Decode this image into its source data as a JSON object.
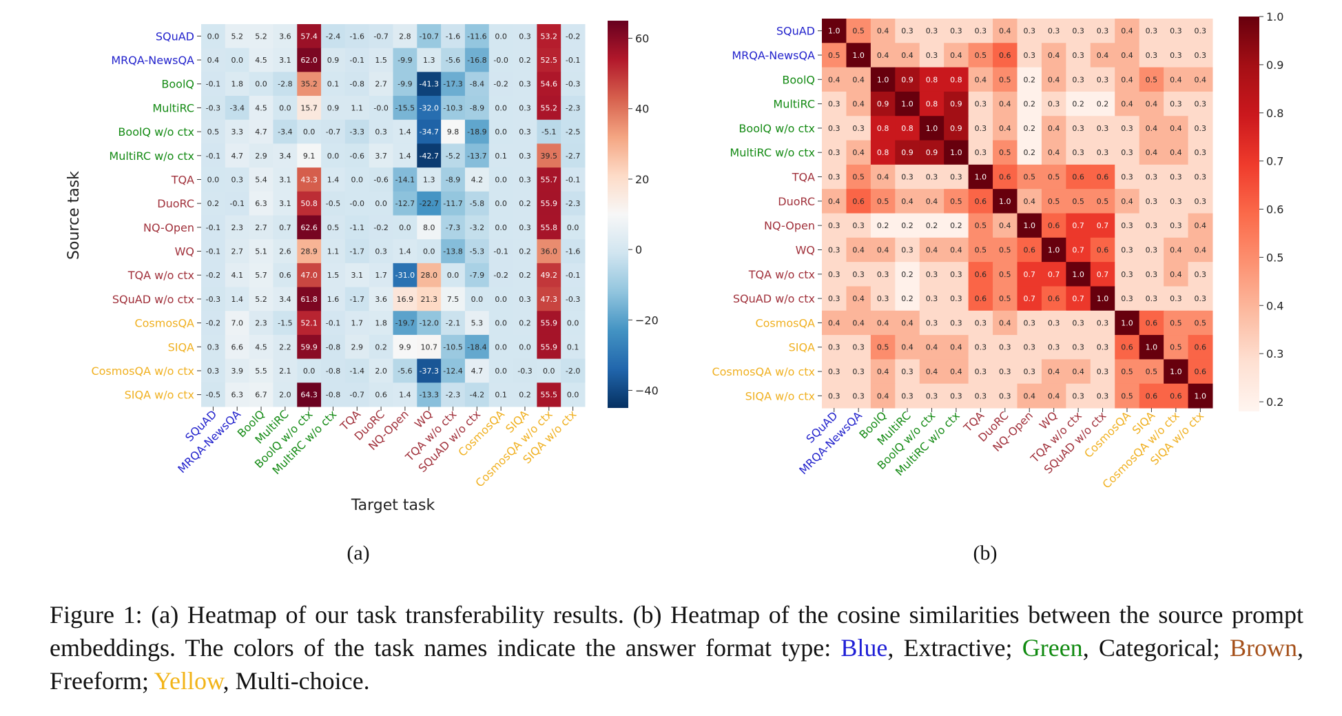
{
  "colors": {
    "Extractive": "#2222cc",
    "Categorical": "#138a13",
    "Freeform": "#a0303a",
    "Multi-choice": "#f0b020"
  },
  "caption": {
    "p1": "Figure 1: (a) Heatmap of our task transferability results. (b) Heatmap of the cosine similarities between the source prompt embeddings.  The colors of the task names indicate the answer format type: ",
    "blue": "Blue",
    "p2": ", Extractive; ",
    "green": "Green",
    "p3": ", Categorical; ",
    "brown": "Brown",
    "p4": ", Freeform; ",
    "yellow": "Yellow",
    "p5": ", Multi-choice."
  },
  "chart_data": [
    {
      "type": "heatmap",
      "panel_label": "(a)",
      "title": "",
      "xlabel": "Target task",
      "ylabel": "Source task",
      "rows": [
        "SQuAD",
        "MRQA-NewsQA",
        "BoolQ",
        "MultiRC",
        "BoolQ w/o ctx",
        "MultiRC w/o ctx",
        "TQA",
        "DuoRC",
        "NQ-Open",
        "WQ",
        "TQA w/o ctx",
        "SQuAD w/o ctx",
        "CosmosQA",
        "SIQA",
        "CosmosQA w/o ctx",
        "SIQA w/o ctx"
      ],
      "cols": [
        "SQuAD",
        "MRQA-NewsQA",
        "BoolQ",
        "MultiRC",
        "BoolQ w/o ctx",
        "MultiRC w/o ctx",
        "TQA",
        "DuoRC",
        "NQ-Open",
        "WQ",
        "TQA w/o ctx",
        "SQuAD w/o ctx",
        "CosmosQA",
        "SIQA",
        "CosmosQA w/o ctx",
        "SIQA w/o ctx"
      ],
      "formats": [
        "Extractive",
        "Extractive",
        "Categorical",
        "Categorical",
        "Categorical",
        "Categorical",
        "Freeform",
        "Freeform",
        "Freeform",
        "Freeform",
        "Freeform",
        "Freeform",
        "Multi-choice",
        "Multi-choice",
        "Multi-choice",
        "Multi-choice"
      ],
      "values": [
        [
          "0.0",
          "5.2",
          "5.2",
          "3.6",
          "57.4",
          "-2.4",
          "-1.6",
          "-0.7",
          "2.8",
          "-10.7",
          "-1.6",
          "-11.6",
          "0.0",
          "0.3",
          "53.2",
          "-0.2"
        ],
        [
          "0.4",
          "0.0",
          "4.5",
          "3.1",
          "62.0",
          "0.9",
          "-0.1",
          "1.5",
          "-9.9",
          "1.3",
          "-5.6",
          "-16.8",
          "-0.0",
          "0.2",
          "52.5",
          "-0.1"
        ],
        [
          "-0.1",
          "1.8",
          "0.0",
          "-2.8",
          "35.2",
          "0.1",
          "-0.8",
          "2.7",
          "-9.9",
          "-41.3",
          "-17.3",
          "-8.4",
          "-0.2",
          "0.3",
          "54.6",
          "-0.3"
        ],
        [
          "-0.3",
          "-3.4",
          "4.5",
          "0.0",
          "15.7",
          "0.9",
          "1.1",
          "-0.0",
          "-15.5",
          "-32.0",
          "-10.3",
          "-8.9",
          "0.0",
          "0.3",
          "55.2",
          "-2.3"
        ],
        [
          "0.5",
          "3.3",
          "4.7",
          "-3.4",
          "0.0",
          "-0.7",
          "-3.3",
          "0.3",
          "1.4",
          "-34.7",
          "9.8",
          "-18.9",
          "0.0",
          "0.3",
          "-5.1",
          "-2.5"
        ],
        [
          "-0.1",
          "4.7",
          "2.9",
          "3.4",
          "9.1",
          "0.0",
          "-0.6",
          "3.7",
          "1.4",
          "-42.7",
          "-5.2",
          "-13.7",
          "0.1",
          "0.3",
          "39.5",
          "-2.7"
        ],
        [
          "0.0",
          "0.3",
          "5.4",
          "3.1",
          "43.3",
          "1.4",
          "0.0",
          "-0.6",
          "-14.1",
          "1.3",
          "-8.9",
          "4.2",
          "0.0",
          "0.3",
          "55.7",
          "-0.1"
        ],
        [
          "0.2",
          "-0.1",
          "6.3",
          "3.1",
          "50.8",
          "-0.5",
          "-0.0",
          "0.0",
          "-12.7",
          "-22.7",
          "-11.7",
          "-5.8",
          "0.0",
          "0.2",
          "55.9",
          "-2.3"
        ],
        [
          "-0.1",
          "2.3",
          "2.7",
          "0.7",
          "62.6",
          "0.5",
          "-1.1",
          "-0.2",
          "0.0",
          "8.0",
          "-7.3",
          "-3.2",
          "0.0",
          "0.3",
          "55.8",
          "0.0"
        ],
        [
          "-0.1",
          "2.7",
          "5.1",
          "2.6",
          "28.9",
          "1.1",
          "-1.7",
          "0.3",
          "1.4",
          "0.0",
          "-13.8",
          "-5.3",
          "-0.1",
          "0.2",
          "36.0",
          "-1.6"
        ],
        [
          "-0.2",
          "4.1",
          "5.7",
          "0.6",
          "47.0",
          "1.5",
          "3.1",
          "1.7",
          "-31.0",
          "28.0",
          "0.0",
          "-7.9",
          "-0.2",
          "0.2",
          "49.2",
          "-0.1"
        ],
        [
          "-0.3",
          "1.4",
          "5.2",
          "3.4",
          "61.8",
          "1.6",
          "-1.7",
          "3.6",
          "16.9",
          "21.3",
          "7.5",
          "0.0",
          "0.0",
          "0.3",
          "47.3",
          "-0.3"
        ],
        [
          "-0.2",
          "7.0",
          "2.3",
          "-1.5",
          "52.1",
          "-0.1",
          "1.7",
          "1.8",
          "-19.7",
          "-12.0",
          "-2.1",
          "5.3",
          "0.0",
          "0.2",
          "55.9",
          "0.0"
        ],
        [
          "0.3",
          "6.6",
          "4.5",
          "2.2",
          "59.9",
          "-0.8",
          "2.9",
          "0.2",
          "9.9",
          "10.7",
          "-10.5",
          "-18.4",
          "0.0",
          "0.0",
          "55.9",
          "0.1"
        ],
        [
          "0.3",
          "3.9",
          "5.5",
          "2.1",
          "0.0",
          "-0.8",
          "-1.4",
          "2.0",
          "-5.6",
          "-37.3",
          "-12.4",
          "4.7",
          "0.0",
          "-0.3",
          "0.0",
          "-2.0"
        ],
        [
          "-0.5",
          "6.3",
          "6.7",
          "2.0",
          "64.3",
          "-0.8",
          "-0.7",
          "0.6",
          "1.4",
          "-13.3",
          "-2.3",
          "-4.2",
          "0.1",
          "0.2",
          "55.5",
          "0.0"
        ]
      ],
      "colorbar": {
        "colormap": "RdBu_r",
        "vmin": -45,
        "vmax": 65,
        "ticks": [
          "60",
          "40",
          "20",
          "0",
          "−20",
          "−40"
        ],
        "tick_values": [
          60,
          40,
          20,
          0,
          -20,
          -40
        ]
      }
    },
    {
      "type": "heatmap",
      "panel_label": "(b)",
      "title": "",
      "xlabel": "",
      "ylabel": "",
      "rows": [
        "SQuAD",
        "MRQA-NewsQA",
        "BoolQ",
        "MultiRC",
        "BoolQ w/o ctx",
        "MultiRC w/o ctx",
        "TQA",
        "DuoRC",
        "NQ-Open",
        "WQ",
        "TQA w/o ctx",
        "SQuAD w/o ctx",
        "CosmosQA",
        "SIQA",
        "CosmosQA w/o ctx",
        "SIQA w/o ctx"
      ],
      "cols": [
        "SQuAD",
        "MRQA-NewsQA",
        "BoolQ",
        "MultiRC",
        "BoolQ w/o ctx",
        "MultiRC w/o ctx",
        "TQA",
        "DuoRC",
        "NQ-Open",
        "WQ",
        "TQA w/o ctx",
        "SQuAD w/o ctx",
        "CosmosQA",
        "SIQA",
        "CosmosQA w/o ctx",
        "SIQA w/o ctx"
      ],
      "formats": [
        "Extractive",
        "Extractive",
        "Categorical",
        "Categorical",
        "Categorical",
        "Categorical",
        "Freeform",
        "Freeform",
        "Freeform",
        "Freeform",
        "Freeform",
        "Freeform",
        "Multi-choice",
        "Multi-choice",
        "Multi-choice",
        "Multi-choice"
      ],
      "values": [
        [
          "1.0",
          "0.5",
          "0.4",
          "0.3",
          "0.3",
          "0.3",
          "0.3",
          "0.4",
          "0.3",
          "0.3",
          "0.3",
          "0.3",
          "0.4",
          "0.3",
          "0.3",
          "0.3"
        ],
        [
          "0.5",
          "1.0",
          "0.4",
          "0.4",
          "0.3",
          "0.4",
          "0.5",
          "0.6",
          "0.3",
          "0.4",
          "0.3",
          "0.4",
          "0.4",
          "0.3",
          "0.3",
          "0.3"
        ],
        [
          "0.4",
          "0.4",
          "1.0",
          "0.9",
          "0.8",
          "0.8",
          "0.4",
          "0.5",
          "0.2",
          "0.4",
          "0.3",
          "0.3",
          "0.4",
          "0.5",
          "0.4",
          "0.4"
        ],
        [
          "0.3",
          "0.4",
          "0.9",
          "1.0",
          "0.8",
          "0.9",
          "0.3",
          "0.4",
          "0.2",
          "0.3",
          "0.2",
          "0.2",
          "0.4",
          "0.4",
          "0.3",
          "0.3"
        ],
        [
          "0.3",
          "0.3",
          "0.8",
          "0.8",
          "1.0",
          "0.9",
          "0.3",
          "0.4",
          "0.2",
          "0.4",
          "0.3",
          "0.3",
          "0.3",
          "0.4",
          "0.4",
          "0.3"
        ],
        [
          "0.3",
          "0.4",
          "0.8",
          "0.9",
          "0.9",
          "1.0",
          "0.3",
          "0.5",
          "0.2",
          "0.4",
          "0.3",
          "0.3",
          "0.3",
          "0.4",
          "0.4",
          "0.3"
        ],
        [
          "0.3",
          "0.5",
          "0.4",
          "0.3",
          "0.3",
          "0.3",
          "1.0",
          "0.6",
          "0.5",
          "0.5",
          "0.6",
          "0.6",
          "0.3",
          "0.3",
          "0.3",
          "0.3"
        ],
        [
          "0.4",
          "0.6",
          "0.5",
          "0.4",
          "0.4",
          "0.5",
          "0.6",
          "1.0",
          "0.4",
          "0.5",
          "0.5",
          "0.5",
          "0.4",
          "0.3",
          "0.3",
          "0.3"
        ],
        [
          "0.3",
          "0.3",
          "0.2",
          "0.2",
          "0.2",
          "0.2",
          "0.5",
          "0.4",
          "1.0",
          "0.6",
          "0.7",
          "0.7",
          "0.3",
          "0.3",
          "0.3",
          "0.4"
        ],
        [
          "0.3",
          "0.4",
          "0.4",
          "0.3",
          "0.4",
          "0.4",
          "0.5",
          "0.5",
          "0.6",
          "1.0",
          "0.7",
          "0.6",
          "0.3",
          "0.3",
          "0.4",
          "0.4"
        ],
        [
          "0.3",
          "0.3",
          "0.3",
          "0.2",
          "0.3",
          "0.3",
          "0.6",
          "0.5",
          "0.7",
          "0.7",
          "1.0",
          "0.7",
          "0.3",
          "0.3",
          "0.4",
          "0.3"
        ],
        [
          "0.3",
          "0.4",
          "0.3",
          "0.2",
          "0.3",
          "0.3",
          "0.6",
          "0.5",
          "0.7",
          "0.6",
          "0.7",
          "1.0",
          "0.3",
          "0.3",
          "0.3",
          "0.3"
        ],
        [
          "0.4",
          "0.4",
          "0.4",
          "0.4",
          "0.3",
          "0.3",
          "0.3",
          "0.4",
          "0.3",
          "0.3",
          "0.3",
          "0.3",
          "1.0",
          "0.6",
          "0.5",
          "0.5"
        ],
        [
          "0.3",
          "0.3",
          "0.5",
          "0.4",
          "0.4",
          "0.4",
          "0.3",
          "0.3",
          "0.3",
          "0.3",
          "0.3",
          "0.3",
          "0.6",
          "1.0",
          "0.5",
          "0.6"
        ],
        [
          "0.3",
          "0.3",
          "0.4",
          "0.3",
          "0.4",
          "0.4",
          "0.3",
          "0.3",
          "0.3",
          "0.4",
          "0.4",
          "0.3",
          "0.5",
          "0.5",
          "1.0",
          "0.6"
        ],
        [
          "0.3",
          "0.3",
          "0.4",
          "0.3",
          "0.3",
          "0.3",
          "0.3",
          "0.3",
          "0.4",
          "0.4",
          "0.3",
          "0.3",
          "0.5",
          "0.6",
          "0.6",
          "1.0"
        ]
      ],
      "colorbar": {
        "colormap": "Reds",
        "vmin": 0.18,
        "vmax": 1.0,
        "ticks": [
          "1.0",
          "0.9",
          "0.8",
          "0.7",
          "0.6",
          "0.5",
          "0.4",
          "0.3",
          "0.2"
        ],
        "tick_values": [
          1.0,
          0.9,
          0.8,
          0.7,
          0.6,
          0.5,
          0.4,
          0.3,
          0.2
        ]
      }
    }
  ]
}
